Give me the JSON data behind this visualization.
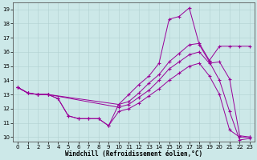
{
  "xlabel": "Windchill (Refroidissement éolien,°C)",
  "background_color": "#cce8e8",
  "line_color": "#990099",
  "xlim_min": -0.5,
  "xlim_max": 23.5,
  "ylim_min": 9.7,
  "ylim_max": 19.5,
  "xticks": [
    0,
    1,
    2,
    3,
    4,
    5,
    6,
    7,
    8,
    9,
    10,
    11,
    12,
    13,
    14,
    15,
    16,
    17,
    18,
    19,
    20,
    21,
    22,
    23
  ],
  "yticks": [
    10,
    11,
    12,
    13,
    14,
    15,
    16,
    17,
    18,
    19
  ],
  "line1_x": [
    0,
    1,
    2,
    3,
    4,
    5,
    6,
    7,
    8,
    9,
    10,
    11,
    12,
    13,
    14,
    15,
    16,
    17,
    18,
    19,
    20,
    21,
    22,
    23
  ],
  "line1_y": [
    13.5,
    13.1,
    13.0,
    13.0,
    12.7,
    11.5,
    11.3,
    11.3,
    11.3,
    10.8,
    12.3,
    13.0,
    13.7,
    14.3,
    15.2,
    18.3,
    18.5,
    19.1,
    16.5,
    15.3,
    14.0,
    11.8,
    9.8,
    9.9
  ],
  "line2_x": [
    0,
    1,
    2,
    3,
    10,
    11,
    12,
    13,
    14,
    15,
    16,
    17,
    18,
    19,
    20,
    21,
    22,
    23
  ],
  "line2_y": [
    13.5,
    13.1,
    13.0,
    13.0,
    12.3,
    12.5,
    13.1,
    13.8,
    14.4,
    15.3,
    15.9,
    16.5,
    16.6,
    15.4,
    16.4,
    16.4,
    16.4,
    16.4
  ],
  "line3_x": [
    0,
    1,
    2,
    3,
    10,
    11,
    12,
    13,
    14,
    15,
    16,
    17,
    18,
    19,
    20,
    21,
    22,
    23
  ],
  "line3_y": [
    13.5,
    13.1,
    13.0,
    13.0,
    12.1,
    12.3,
    12.8,
    13.3,
    14.0,
    14.8,
    15.3,
    15.8,
    16.0,
    15.2,
    15.3,
    14.1,
    10.1,
    10.0
  ],
  "line4_x": [
    0,
    1,
    2,
    3,
    4,
    5,
    6,
    7,
    8,
    9,
    10,
    11,
    12,
    13,
    14,
    15,
    16,
    17,
    18,
    19,
    20,
    21,
    22,
    23
  ],
  "line4_y": [
    13.5,
    13.1,
    13.0,
    13.0,
    12.7,
    11.5,
    11.3,
    11.3,
    11.3,
    10.8,
    11.8,
    12.0,
    12.4,
    12.9,
    13.4,
    14.0,
    14.5,
    15.0,
    15.2,
    14.3,
    13.0,
    10.5,
    10.0,
    10.0
  ]
}
